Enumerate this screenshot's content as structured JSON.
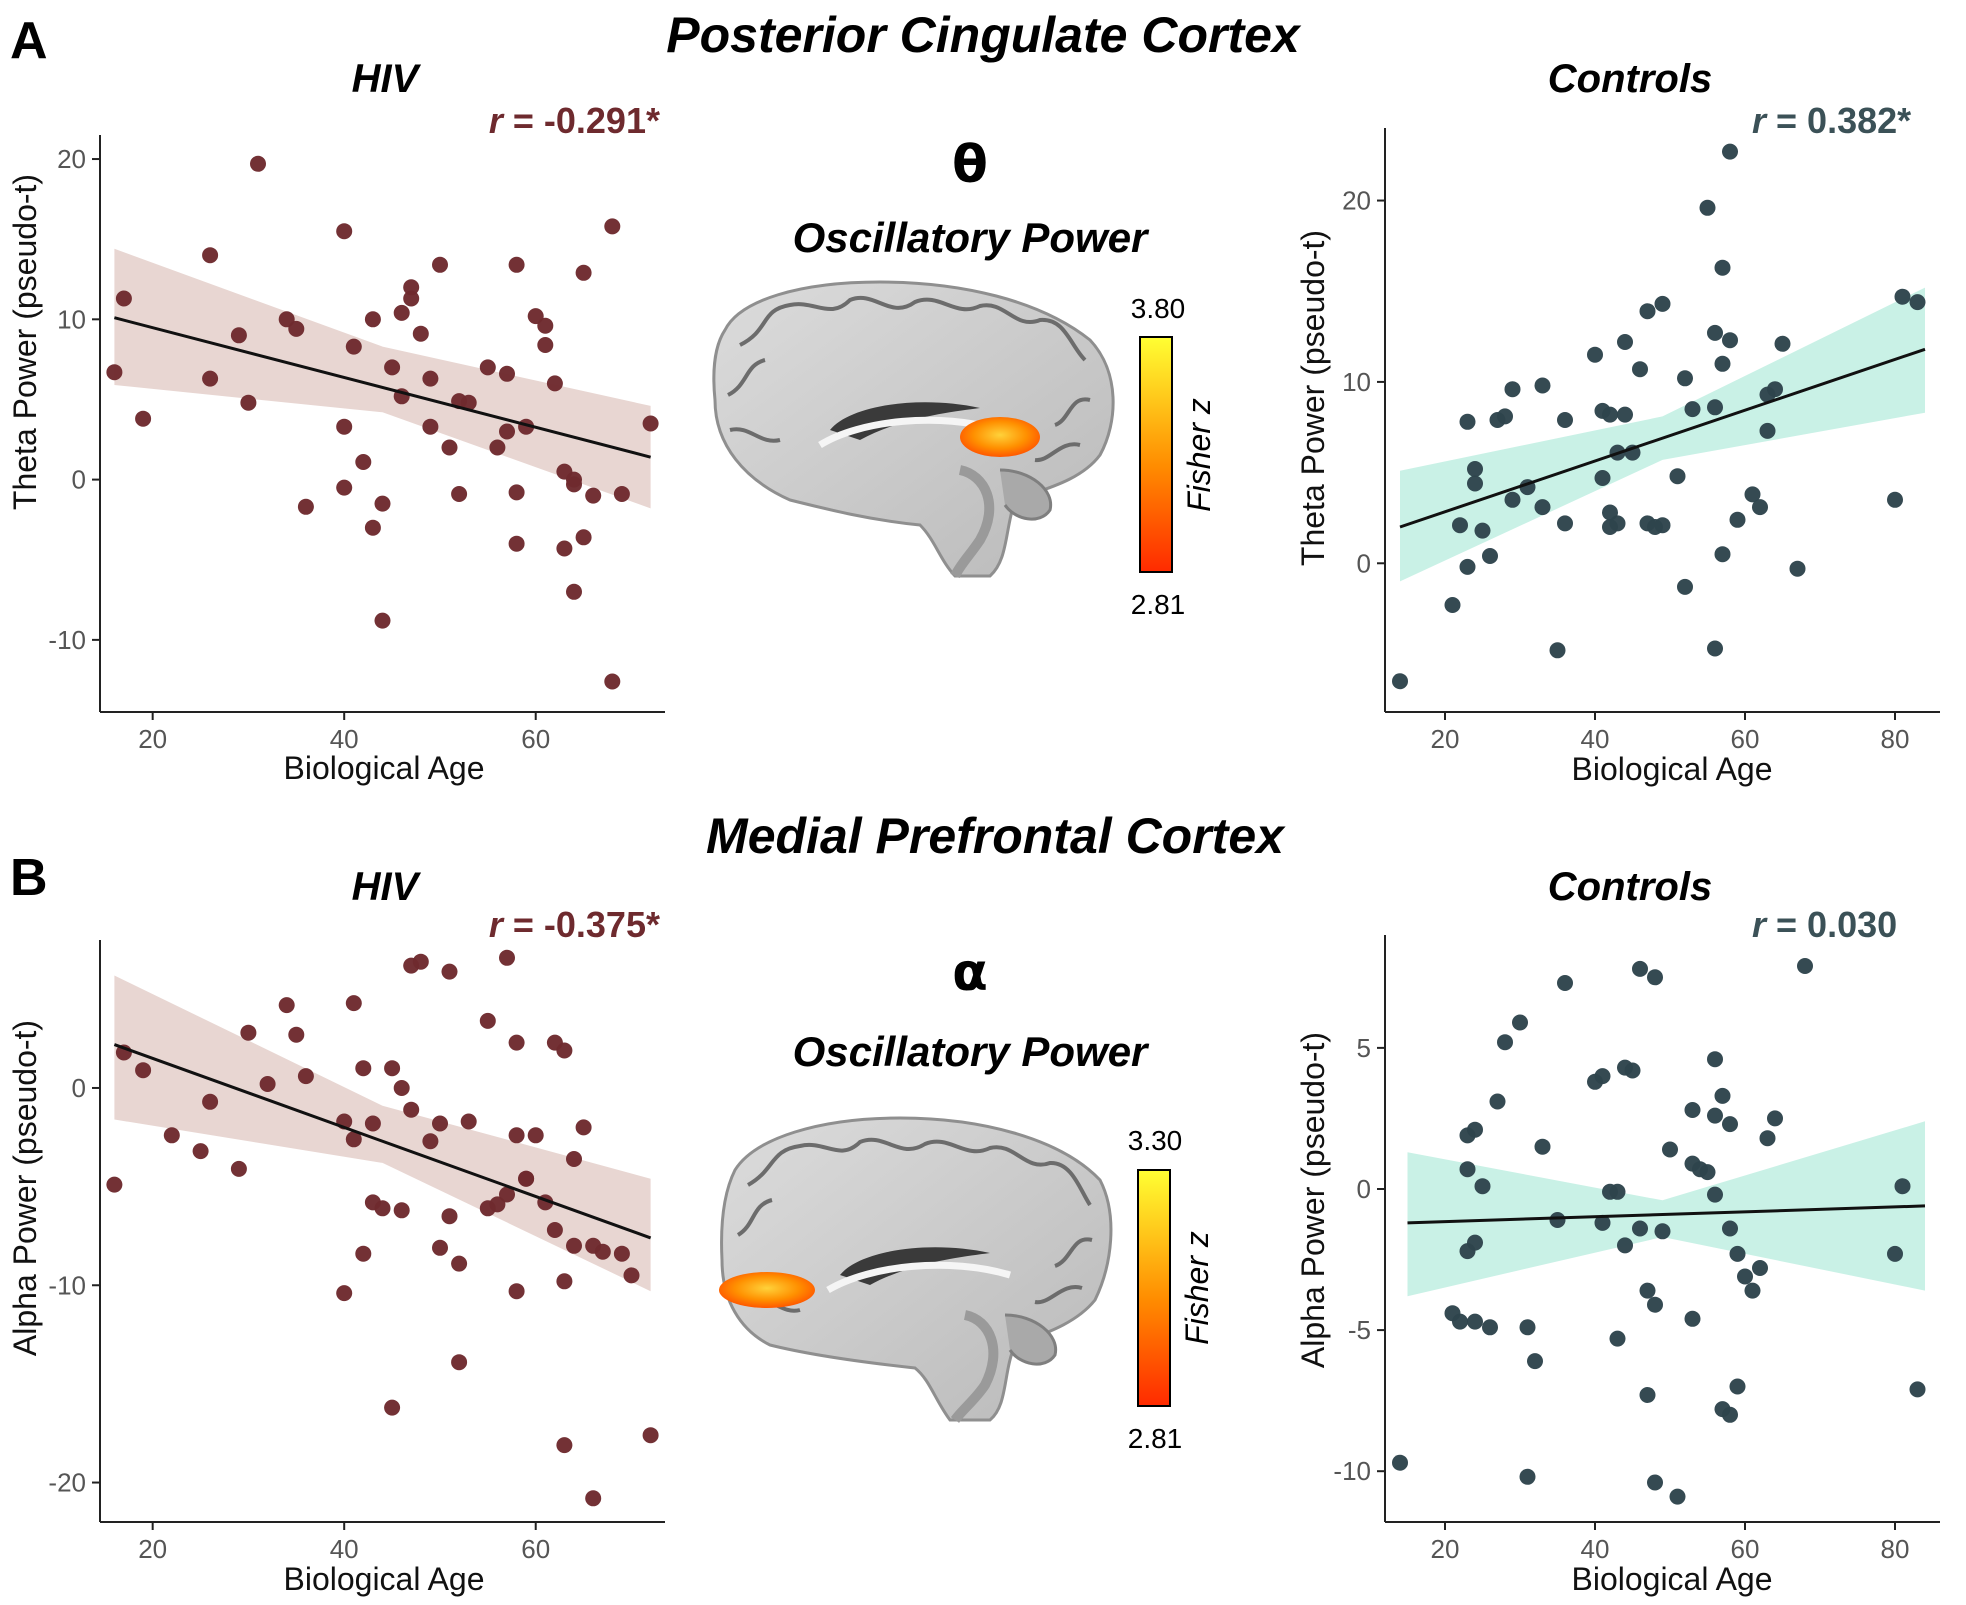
{
  "colors": {
    "hiv_point": "#6e2a2e",
    "hiv_band": "#e8d6d2",
    "hiv_r_text": "#6e2a2e",
    "ctrl_point": "#2e444c",
    "ctrl_band": "#c9f1e6",
    "ctrl_r_text": "#3b5157",
    "fit_line": "#111111",
    "axis": "#222222"
  },
  "panels": [
    {
      "label": "A",
      "region_title": "Posterior Cingulate Cortex",
      "symbol": "θ",
      "center_title": "Oscillatory Power",
      "brain_map": {
        "colorbar_max": "3.80",
        "colorbar_min": "2.81",
        "colorbar_label": "Fisher z",
        "activation": "posterior-cingulate"
      }
    },
    {
      "label": "B",
      "region_title": "Medial Prefrontal Cortex",
      "symbol": "α",
      "center_title": "Oscillatory Power",
      "brain_map": {
        "colorbar_max": "3.30",
        "colorbar_min": "2.81",
        "colorbar_label": "Fisher z",
        "activation": "medial-prefrontal"
      }
    }
  ],
  "chart_data": [
    {
      "type": "scatter",
      "group": "hiv",
      "title": "HIV",
      "annotation": {
        "italic_r": "r",
        "rest": " = -0.291*"
      },
      "xlabel": "Biological Age",
      "ylabel": "Theta Power (pseudo-t)",
      "xlim": [
        14.5,
        73.5
      ],
      "ylim": [
        -14.5,
        21.5
      ],
      "xticks": [
        20,
        40,
        60
      ],
      "yticks": [
        -10,
        0,
        10,
        20
      ],
      "fit": {
        "x": [
          16,
          72
        ],
        "y": [
          10.1,
          1.4
        ]
      },
      "band": {
        "x": [
          16,
          44,
          72
        ],
        "lower": [
          5.9,
          4.2,
          -1.8
        ],
        "upper": [
          14.4,
          8.3,
          4.6
        ]
      },
      "points": [
        [
          16,
          6.7
        ],
        [
          17,
          11.3
        ],
        [
          19,
          3.8
        ],
        [
          26,
          14
        ],
        [
          26,
          6.3
        ],
        [
          29,
          9
        ],
        [
          30,
          4.8
        ],
        [
          31,
          19.7
        ],
        [
          34,
          10
        ],
        [
          35,
          9.4
        ],
        [
          36,
          -1.7
        ],
        [
          40,
          15.5
        ],
        [
          40,
          3.3
        ],
        [
          40,
          -0.5
        ],
        [
          41,
          8.3
        ],
        [
          42,
          1.1
        ],
        [
          43,
          -3
        ],
        [
          43,
          10
        ],
        [
          44,
          -1.5
        ],
        [
          44,
          -8.8
        ],
        [
          45,
          7
        ],
        [
          46,
          5.2
        ],
        [
          46,
          10.4
        ],
        [
          47,
          11.3
        ],
        [
          47,
          12
        ],
        [
          48,
          9.1
        ],
        [
          49,
          6.3
        ],
        [
          49,
          3.3
        ],
        [
          50,
          13.4
        ],
        [
          51,
          2
        ],
        [
          52,
          4.9
        ],
        [
          52,
          -0.9
        ],
        [
          53,
          4.8
        ],
        [
          55,
          7
        ],
        [
          56,
          2
        ],
        [
          57,
          6.6
        ],
        [
          57,
          3
        ],
        [
          58,
          -0.8
        ],
        [
          58,
          -4
        ],
        [
          58,
          13.4
        ],
        [
          59,
          3.3
        ],
        [
          60,
          10.2
        ],
        [
          61,
          9.6
        ],
        [
          61,
          8.4
        ],
        [
          62,
          6
        ],
        [
          63,
          0.5
        ],
        [
          63,
          -4.3
        ],
        [
          64,
          -7
        ],
        [
          64,
          0
        ],
        [
          64,
          -0.3
        ],
        [
          65,
          12.9
        ],
        [
          65,
          -3.6
        ],
        [
          66,
          -1
        ],
        [
          68,
          15.8
        ],
        [
          68,
          -12.6
        ],
        [
          69,
          -0.9
        ],
        [
          72,
          3.5
        ]
      ]
    },
    {
      "type": "scatter",
      "group": "controls",
      "title": "Controls",
      "annotation": {
        "italic_r": "r",
        "rest": " = 0.382*"
      },
      "xlabel": "Biological Age",
      "ylabel": "Theta Power (pseudo-t)",
      "xlim": [
        12,
        86
      ],
      "ylim": [
        -8.2,
        24
      ],
      "xticks": [
        20,
        40,
        60,
        80
      ],
      "yticks": [
        0,
        10,
        20
      ],
      "fit": {
        "x": [
          14,
          84
        ],
        "y": [
          2,
          11.8
        ]
      },
      "band": {
        "x": [
          14,
          49,
          84
        ],
        "lower": [
          -1,
          5.7,
          8.3
        ],
        "upper": [
          5.1,
          8.1,
          15.2
        ]
      },
      "points": [
        [
          14,
          -6.5
        ],
        [
          21,
          -2.3
        ],
        [
          22,
          2.1
        ],
        [
          23,
          -0.2
        ],
        [
          23,
          7.8
        ],
        [
          24,
          5.2
        ],
        [
          24,
          4.4
        ],
        [
          25,
          1.8
        ],
        [
          26,
          0.4
        ],
        [
          27,
          7.9
        ],
        [
          28,
          8.1
        ],
        [
          29,
          3.5
        ],
        [
          29,
          9.6
        ],
        [
          31,
          4.2
        ],
        [
          33,
          3.1
        ],
        [
          33,
          9.8
        ],
        [
          35,
          -4.8
        ],
        [
          36,
          2.2
        ],
        [
          36,
          7.9
        ],
        [
          40,
          11.5
        ],
        [
          41,
          8.4
        ],
        [
          41,
          4.7
        ],
        [
          42,
          8.2
        ],
        [
          42,
          2.8
        ],
        [
          42,
          2
        ],
        [
          43,
          6.1
        ],
        [
          43,
          2.2
        ],
        [
          44,
          8.2
        ],
        [
          44,
          12.2
        ],
        [
          45,
          6.1
        ],
        [
          46,
          10.7
        ],
        [
          47,
          2.2
        ],
        [
          47,
          13.9
        ],
        [
          48,
          2
        ],
        [
          49,
          14.3
        ],
        [
          49,
          2.1
        ],
        [
          51,
          4.8
        ],
        [
          52,
          10.2
        ],
        [
          52,
          -1.3
        ],
        [
          53,
          8.5
        ],
        [
          55,
          19.6
        ],
        [
          56,
          8.6
        ],
        [
          56,
          12.7
        ],
        [
          56,
          -4.7
        ],
        [
          57,
          11
        ],
        [
          57,
          16.3
        ],
        [
          57,
          0.5
        ],
        [
          58,
          22.7
        ],
        [
          58,
          12.3
        ],
        [
          59,
          2.4
        ],
        [
          61,
          3.8
        ],
        [
          62,
          3.1
        ],
        [
          63,
          9.3
        ],
        [
          63,
          7.3
        ],
        [
          64,
          9.6
        ],
        [
          65,
          12.1
        ],
        [
          67,
          -0.3
        ],
        [
          80,
          3.5
        ],
        [
          81,
          14.7
        ],
        [
          83,
          14.4
        ]
      ]
    },
    {
      "type": "scatter",
      "group": "hiv",
      "title": "HIV",
      "annotation": {
        "italic_r": "r",
        "rest": " = -0.375*"
      },
      "xlabel": "Biological Age",
      "ylabel": "Alpha Power (pseudo-t)",
      "xlim": [
        14.5,
        73.5
      ],
      "ylim": [
        -22,
        7.5
      ],
      "xticks": [
        20,
        40,
        60
      ],
      "yticks": [
        -20,
        -10,
        0
      ],
      "fit": {
        "x": [
          16,
          72
        ],
        "y": [
          2.2,
          -7.6
        ]
      },
      "band": {
        "x": [
          16,
          44,
          72
        ],
        "lower": [
          -1.6,
          -3.8,
          -10.3
        ],
        "upper": [
          5.7,
          -0.9,
          -4.6
        ]
      },
      "points": [
        [
          16,
          -4.9
        ],
        [
          17,
          1.8
        ],
        [
          19,
          0.9
        ],
        [
          22,
          -2.4
        ],
        [
          25,
          -3.2
        ],
        [
          26,
          -0.7
        ],
        [
          29,
          -4.1
        ],
        [
          30,
          2.8
        ],
        [
          32,
          0.2
        ],
        [
          34,
          4.2
        ],
        [
          35,
          2.7
        ],
        [
          36,
          0.6
        ],
        [
          40,
          -1.7
        ],
        [
          40,
          -10.4
        ],
        [
          41,
          -2.6
        ],
        [
          41,
          4.3
        ],
        [
          42,
          -8.4
        ],
        [
          42,
          1
        ],
        [
          43,
          -1.8
        ],
        [
          43,
          -5.8
        ],
        [
          44,
          -6.1
        ],
        [
          45,
          -16.2
        ],
        [
          45,
          1
        ],
        [
          46,
          -6.2
        ],
        [
          46,
          0
        ],
        [
          47,
          6.2
        ],
        [
          47,
          -1.1
        ],
        [
          48,
          6.4
        ],
        [
          49,
          -2.7
        ],
        [
          50,
          -1.8
        ],
        [
          50,
          -8.1
        ],
        [
          51,
          5.9
        ],
        [
          51,
          -6.5
        ],
        [
          52,
          -8.9
        ],
        [
          52,
          -13.9
        ],
        [
          53,
          -1.7
        ],
        [
          55,
          -6.1
        ],
        [
          55,
          3.4
        ],
        [
          56,
          -5.9
        ],
        [
          57,
          6.6
        ],
        [
          57,
          -5.4
        ],
        [
          58,
          -10.3
        ],
        [
          58,
          -2.4
        ],
        [
          58,
          2.3
        ],
        [
          59,
          -4.6
        ],
        [
          59,
          -4.6
        ],
        [
          60,
          -2.4
        ],
        [
          61,
          -5.8
        ],
        [
          62,
          2.3
        ],
        [
          62,
          -7.2
        ],
        [
          63,
          -9.8
        ],
        [
          63,
          1.9
        ],
        [
          63,
          -18.1
        ],
        [
          64,
          -3.6
        ],
        [
          64,
          -8
        ],
        [
          65,
          -2
        ],
        [
          66,
          -8
        ],
        [
          66,
          -20.8
        ],
        [
          67,
          -8.3
        ],
        [
          69,
          -8.4
        ],
        [
          70,
          -9.5
        ],
        [
          72,
          -17.6
        ]
      ]
    },
    {
      "type": "scatter",
      "group": "controls",
      "title": "Controls",
      "annotation": {
        "italic_r": "r",
        "rest": " = 0.030"
      },
      "xlabel": "Biological Age",
      "ylabel": "Alpha Power (pseudo-t)",
      "xlim": [
        12,
        86
      ],
      "ylim": [
        -11.8,
        9
      ],
      "xticks": [
        20,
        40,
        60,
        80
      ],
      "yticks": [
        -10,
        -5,
        0,
        5
      ],
      "fit": {
        "x": [
          15,
          84
        ],
        "y": [
          -1.2,
          -0.6
        ]
      },
      "band": {
        "x": [
          15,
          49,
          84
        ],
        "lower": [
          -3.8,
          -1.7,
          -3.6
        ],
        "upper": [
          1.3,
          -0.4,
          2.4
        ]
      },
      "points": [
        [
          14,
          -9.7
        ],
        [
          21,
          -4.4
        ],
        [
          22,
          -4.7
        ],
        [
          23,
          0.7
        ],
        [
          23,
          1.9
        ],
        [
          23,
          -2.2
        ],
        [
          24,
          -4.7
        ],
        [
          24,
          -1.9
        ],
        [
          24,
          2.1
        ],
        [
          25,
          0.1
        ],
        [
          26,
          -4.9
        ],
        [
          27,
          3.1
        ],
        [
          28,
          5.2
        ],
        [
          30,
          5.9
        ],
        [
          31,
          -4.9
        ],
        [
          31,
          -10.2
        ],
        [
          32,
          -6.1
        ],
        [
          33,
          1.5
        ],
        [
          35,
          -1.1
        ],
        [
          36,
          7.3
        ],
        [
          40,
          3.8
        ],
        [
          41,
          -1.2
        ],
        [
          41,
          4
        ],
        [
          42,
          -0.1
        ],
        [
          43,
          -5.3
        ],
        [
          43,
          -0.1
        ],
        [
          44,
          4.3
        ],
        [
          44,
          -2
        ],
        [
          45,
          4.2
        ],
        [
          46,
          -1.4
        ],
        [
          46,
          7.8
        ],
        [
          47,
          -7.3
        ],
        [
          47,
          -3.6
        ],
        [
          48,
          -10.4
        ],
        [
          48,
          -4.1
        ],
        [
          48,
          7.5
        ],
        [
          49,
          -1.5
        ],
        [
          50,
          1.4
        ],
        [
          51,
          -10.9
        ],
        [
          53,
          2.8
        ],
        [
          53,
          -4.6
        ],
        [
          53,
          0.9
        ],
        [
          54,
          0.7
        ],
        [
          55,
          0.6
        ],
        [
          56,
          4.6
        ],
        [
          56,
          2.6
        ],
        [
          56,
          -0.2
        ],
        [
          57,
          -7.8
        ],
        [
          57,
          3.3
        ],
        [
          58,
          -1.4
        ],
        [
          58,
          -8
        ],
        [
          58,
          2.3
        ],
        [
          59,
          -2.3
        ],
        [
          59,
          -7
        ],
        [
          60,
          -3.1
        ],
        [
          61,
          -3.6
        ],
        [
          62,
          -2.8
        ],
        [
          63,
          1.8
        ],
        [
          64,
          2.5
        ],
        [
          68,
          7.9
        ],
        [
          80,
          -2.3
        ],
        [
          81,
          0.1
        ],
        [
          83,
          -7.1
        ]
      ]
    }
  ]
}
